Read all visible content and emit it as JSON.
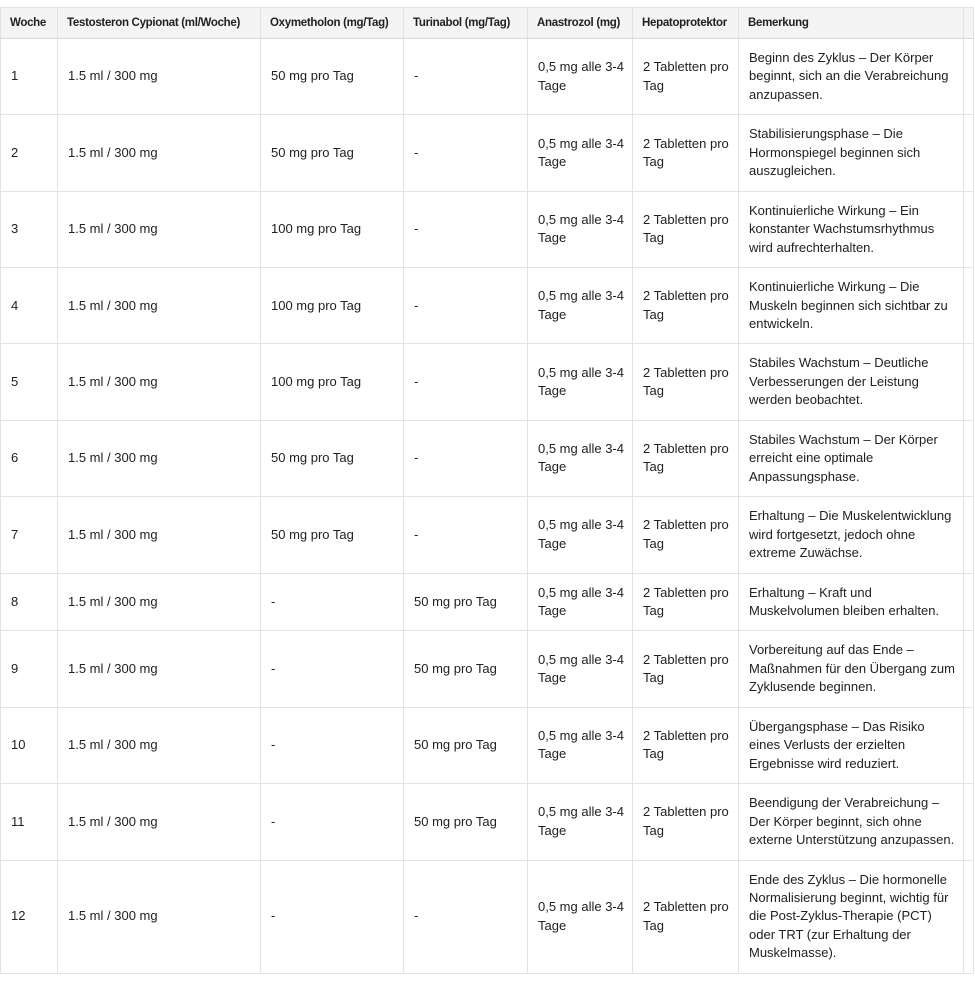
{
  "colors": {
    "header_bg": "#f4f4f4",
    "border_color": "#e3e3e3",
    "header_border_color": "#d7d7d7",
    "text_color": "#212121",
    "page_bg": "#ffffff"
  },
  "table": {
    "columns": [
      {
        "key": "woche",
        "label": "Woche"
      },
      {
        "key": "testosteron",
        "label": "Testosteron Cypionat (ml/Woche)"
      },
      {
        "key": "oxymetholon",
        "label": "Oxymetholon (mg/Tag)"
      },
      {
        "key": "turinabol",
        "label": "Turinabol (mg/Tag)"
      },
      {
        "key": "anastrozol",
        "label": "Anastrozol (mg)"
      },
      {
        "key": "hepatoprotektor",
        "label": "Hepatoprotektor"
      },
      {
        "key": "bemerkung",
        "label": "Bemerkung"
      }
    ],
    "rows": [
      {
        "woche": "1",
        "testosteron": "1.5 ml / 300 mg",
        "oxymetholon": "50 mg pro Tag",
        "turinabol": "-",
        "anastrozol": "0,5 mg alle 3-4 Tage",
        "hepatoprotektor": "2 Tabletten pro Tag",
        "bemerkung": "Beginn des Zyklus – Der Körper beginnt, sich an die Verabreichung anzupassen."
      },
      {
        "woche": "2",
        "testosteron": "1.5 ml / 300 mg",
        "oxymetholon": "50 mg pro Tag",
        "turinabol": "-",
        "anastrozol": "0,5 mg alle 3-4 Tage",
        "hepatoprotektor": "2 Tabletten pro Tag",
        "bemerkung": "Stabilisierungsphase – Die Hormonspiegel beginnen sich auszugleichen."
      },
      {
        "woche": "3",
        "testosteron": "1.5 ml / 300 mg",
        "oxymetholon": "100 mg pro Tag",
        "turinabol": "-",
        "anastrozol": "0,5 mg alle 3-4 Tage",
        "hepatoprotektor": "2 Tabletten pro Tag",
        "bemerkung": "Kontinuierliche Wirkung – Ein konstanter Wachstumsrhythmus wird aufrechterhalten."
      },
      {
        "woche": "4",
        "testosteron": "1.5 ml / 300 mg",
        "oxymetholon": "100 mg pro Tag",
        "turinabol": "-",
        "anastrozol": "0,5 mg alle 3-4 Tage",
        "hepatoprotektor": "2 Tabletten pro Tag",
        "bemerkung": "Kontinuierliche Wirkung – Die Muskeln beginnen sich sichtbar zu entwickeln."
      },
      {
        "woche": "5",
        "testosteron": "1.5 ml / 300 mg",
        "oxymetholon": "100 mg pro Tag",
        "turinabol": "-",
        "anastrozol": "0,5 mg alle 3-4 Tage",
        "hepatoprotektor": "2 Tabletten pro Tag",
        "bemerkung": "Stabiles Wachstum – Deutliche Verbesserungen der Leistung werden beobachtet."
      },
      {
        "woche": "6",
        "testosteron": "1.5 ml / 300 mg",
        "oxymetholon": "50 mg pro Tag",
        "turinabol": "-",
        "anastrozol": "0,5 mg alle 3-4 Tage",
        "hepatoprotektor": "2 Tabletten pro Tag",
        "bemerkung": "Stabiles Wachstum – Der Körper erreicht eine optimale Anpassungsphase."
      },
      {
        "woche": "7",
        "testosteron": "1.5 ml / 300 mg",
        "oxymetholon": "50 mg pro Tag",
        "turinabol": "-",
        "anastrozol": "0,5 mg alle 3-4 Tage",
        "hepatoprotektor": "2 Tabletten pro Tag",
        "bemerkung": "Erhaltung – Die Muskelentwicklung wird fortgesetzt, jedoch ohne extreme Zuwächse."
      },
      {
        "woche": "8",
        "testosteron": "1.5 ml / 300 mg",
        "oxymetholon": "-",
        "turinabol": "50 mg pro Tag",
        "anastrozol": "0,5 mg alle 3-4 Tage",
        "hepatoprotektor": "2 Tabletten pro Tag",
        "bemerkung": "Erhaltung – Kraft und Muskelvolumen bleiben erhalten."
      },
      {
        "woche": "9",
        "testosteron": "1.5 ml / 300 mg",
        "oxymetholon": "-",
        "turinabol": "50 mg pro Tag",
        "anastrozol": "0,5 mg alle 3-4 Tage",
        "hepatoprotektor": "2 Tabletten pro Tag",
        "bemerkung": "Vorbereitung auf das Ende – Maßnahmen für den Übergang zum Zyklusende beginnen."
      },
      {
        "woche": "10",
        "testosteron": "1.5 ml / 300 mg",
        "oxymetholon": "-",
        "turinabol": "50 mg pro Tag",
        "anastrozol": "0,5 mg alle 3-4 Tage",
        "hepatoprotektor": "2 Tabletten pro Tag",
        "bemerkung": "Übergangsphase – Das Risiko eines Verlusts der erzielten Ergebnisse wird reduziert."
      },
      {
        "woche": "11",
        "testosteron": "1.5 ml / 300 mg",
        "oxymetholon": "-",
        "turinabol": "50 mg pro Tag",
        "anastrozol": "0,5 mg alle 3-4 Tage",
        "hepatoprotektor": "2 Tabletten pro Tag",
        "bemerkung": "Beendigung der Verabreichung – Der Körper beginnt, sich ohne externe Unterstützung anzupassen."
      },
      {
        "woche": "12",
        "testosteron": "1.5 ml / 300 mg",
        "oxymetholon": "-",
        "turinabol": "-",
        "anastrozol": "0,5 mg alle 3-4 Tage",
        "hepatoprotektor": "2 Tabletten pro Tag",
        "bemerkung": "Ende des Zyklus – Die hormonelle Normalisierung beginnt, wichtig für die Post-Zyklus-Therapie (PCT) oder TRT (zur Erhaltung der Muskelmasse)."
      }
    ]
  }
}
